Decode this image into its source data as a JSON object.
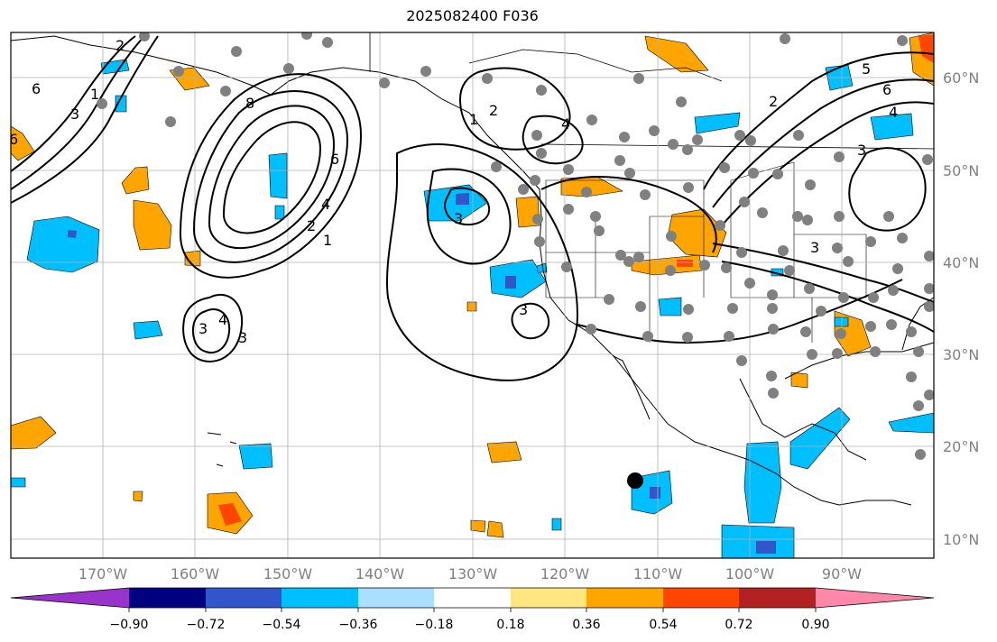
{
  "title": "2025082400 F036",
  "map": {
    "lat_labels": [
      "60°N",
      "50°N",
      "40°N",
      "30°N",
      "20°N",
      "10°N"
    ],
    "lon_labels": [
      "170°W",
      "160°W",
      "150°W",
      "140°W",
      "130°W",
      "120°W",
      "110°W",
      "100°W",
      "90°W"
    ],
    "contour_labels": [
      "6",
      "3",
      "1",
      "2",
      "8",
      "6",
      "4",
      "2",
      "1",
      "3",
      "4",
      "3",
      "3",
      "1",
      "2",
      "4",
      "6",
      "5",
      "6",
      "4",
      "3",
      "3",
      "2",
      "3"
    ]
  },
  "colorbar": {
    "tick_labels": [
      "−0.90",
      "−0.72",
      "−0.54",
      "−0.36",
      "−0.18",
      "0.18",
      "0.36",
      "0.54",
      "0.72",
      "0.90"
    ],
    "colors": [
      "#9933cc",
      "#000080",
      "#3355cc",
      "#00bfff",
      "#aadfff",
      "#ffffff",
      "#ffe680",
      "#ffa500",
      "#ff4500",
      "#b22222",
      "#ff88aa"
    ]
  },
  "colors": {
    "grid": "#b0b0b0",
    "station_dot": "#808080",
    "contour": "#000000"
  }
}
